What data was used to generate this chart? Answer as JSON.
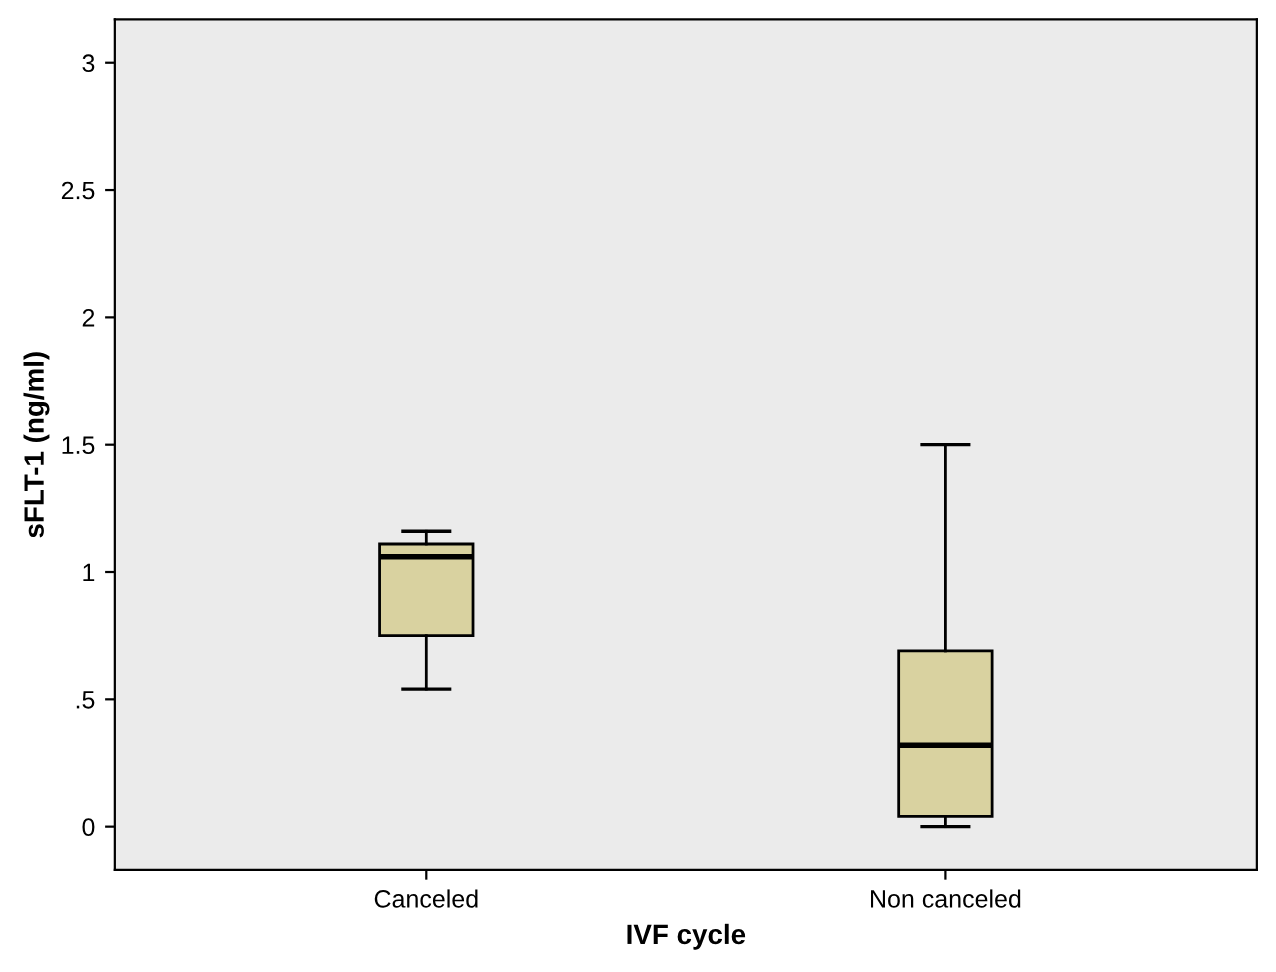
{
  "chart_data": {
    "type": "box",
    "xlabel": "IVF cycle",
    "ylabel": "sFLT-1 (ng/ml)",
    "categories": [
      "Canceled",
      "Non canceled"
    ],
    "boxes": [
      {
        "low": 0.54,
        "q1": 0.75,
        "median": 1.06,
        "q3": 1.11,
        "high": 1.16
      },
      {
        "low": 0.0,
        "q1": 0.04,
        "median": 0.32,
        "q3": 0.69,
        "high": 1.5
      }
    ],
    "color": "#d9d2a0",
    "ylim": [
      -0.17,
      3.17
    ],
    "yticks": [
      0,
      {
        "value": 0.5,
        "label": ".5"
      },
      1,
      1.5,
      2,
      2.5,
      3
    ],
    "grid": false
  }
}
